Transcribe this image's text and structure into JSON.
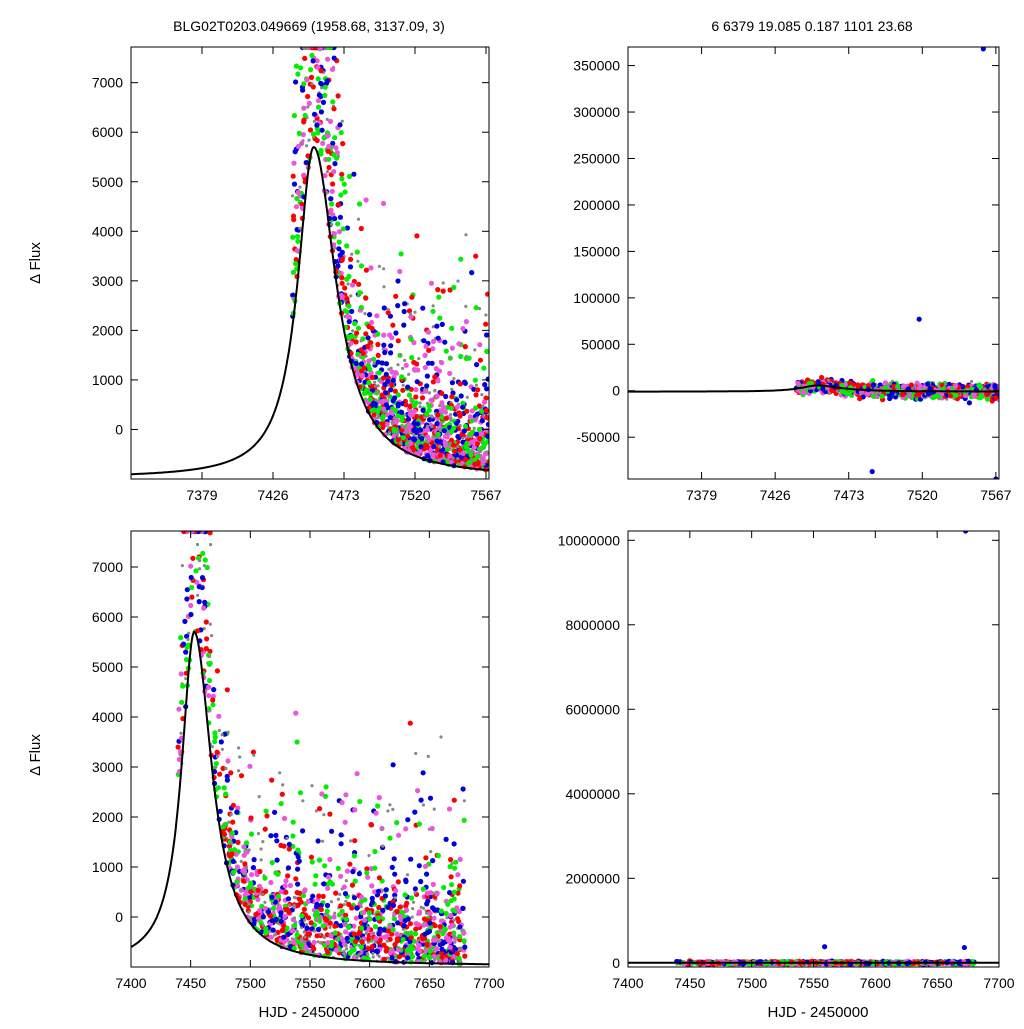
{
  "header": {
    "left": "BLG02T0203.049669 (1958.68, 3137.09,    3)",
    "right": "6   6379   19.085   0.187   1101   23.68"
  },
  "colors": {
    "frame": "#000000",
    "model": "#000000",
    "series": [
      "#0000dd",
      "#ff0000",
      "#00ee00",
      "#ee55dd",
      "#888888"
    ]
  },
  "chart_data": [
    {
      "type": "scatter",
      "panel": "top-left",
      "ylabel": "Δ Flux",
      "xlabel": "",
      "xlim": [
        7332,
        7569
      ],
      "ylim": [
        -1000,
        7720
      ],
      "xticks": [
        7379,
        7426,
        7473,
        7520,
        7567
      ],
      "yticks": [
        0,
        1000,
        2000,
        3000,
        4000,
        5000,
        6000,
        7000
      ],
      "model": {
        "t0": 7453,
        "peak": 5700,
        "base": -980,
        "rise_width": 13,
        "decay_width": 18
      },
      "data_x_range": [
        7439,
        7569
      ],
      "series_colors": [
        "blue",
        "red",
        "green",
        "magenta",
        "gray"
      ]
    },
    {
      "type": "scatter",
      "panel": "top-right",
      "ylabel": "",
      "xlabel": "",
      "xlim": [
        7332,
        7569
      ],
      "ylim": [
        -95000,
        370000
      ],
      "xticks": [
        7379,
        7426,
        7473,
        7520,
        7567
      ],
      "yticks": [
        -50000,
        0,
        50000,
        100000,
        150000,
        200000,
        250000,
        300000,
        350000
      ],
      "outliers": [
        {
          "x": 7559,
          "y": 368000
        },
        {
          "x": 7488,
          "y": -87000
        },
        {
          "x": 7567,
          "y": -95000
        },
        {
          "x": 7518,
          "y": 77000
        }
      ],
      "data_x_range": [
        7439,
        7569
      ]
    },
    {
      "type": "scatter",
      "panel": "bottom-left",
      "ylabel": "Δ Flux",
      "xlabel": "HJD - 2450000",
      "xlim": [
        7400,
        7700
      ],
      "ylim": [
        -1000,
        7720
      ],
      "xticks": [
        7400,
        7450,
        7500,
        7550,
        7600,
        7650,
        7700
      ],
      "yticks": [
        0,
        1000,
        2000,
        3000,
        4000,
        5000,
        6000,
        7000
      ],
      "model": {
        "t0": 7453,
        "peak": 5700,
        "base": -980,
        "rise_width": 13,
        "decay_width": 18
      },
      "data_x_range": [
        7439,
        7680
      ]
    },
    {
      "type": "scatter",
      "panel": "bottom-right",
      "ylabel": "",
      "xlabel": "HJD - 2450000",
      "xlim": [
        7400,
        7700
      ],
      "ylim": [
        -100000,
        10220000
      ],
      "xticks": [
        7400,
        7450,
        7500,
        7550,
        7600,
        7650,
        7700
      ],
      "yticks": [
        0,
        2000000,
        4000000,
        6000000,
        8000000,
        10000000
      ],
      "outliers": [
        {
          "x": 7673,
          "y": 10220000
        },
        {
          "x": 7559,
          "y": 380000
        },
        {
          "x": 7672,
          "y": 360000
        }
      ],
      "data_x_range": [
        7439,
        7680
      ]
    }
  ]
}
